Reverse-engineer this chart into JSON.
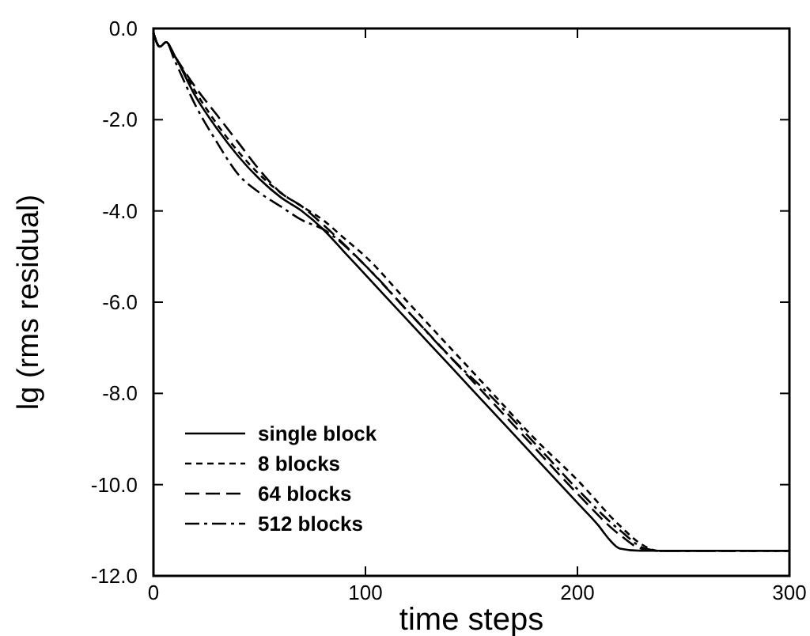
{
  "chart_data": {
    "type": "line",
    "xlabel": "time steps",
    "ylabel": "lg (rms residual)",
    "xlim": [
      0,
      300
    ],
    "ylim": [
      -12,
      0
    ],
    "xticks": [
      0,
      100,
      200,
      300
    ],
    "yticks": [
      {
        "value": 0,
        "label": "0.0"
      },
      {
        "value": -2,
        "label": "-2.0"
      },
      {
        "value": -4,
        "label": "-4.0"
      },
      {
        "value": -6,
        "label": "-6.0"
      },
      {
        "value": -8,
        "label": "-8.0"
      },
      {
        "value": -10,
        "label": "-10.0"
      },
      {
        "value": -12,
        "label": "-12.0"
      }
    ],
    "grid": false,
    "legend": "bottom left",
    "series": [
      {
        "name": "single block",
        "color": "#000000",
        "line_style": "solid",
        "x": [
          0,
          3,
          6,
          10,
          20,
          30,
          40,
          50,
          60,
          70,
          80,
          90,
          100,
          120,
          140,
          160,
          180,
          200,
          210,
          215,
          220,
          230,
          300
        ],
        "values": [
          -0.1,
          -0.4,
          -0.3,
          -0.6,
          -1.5,
          -2.2,
          -2.8,
          -3.3,
          -3.7,
          -4.0,
          -4.4,
          -4.9,
          -5.4,
          -6.4,
          -7.4,
          -8.4,
          -9.4,
          -10.4,
          -10.9,
          -11.2,
          -11.4,
          -11.45,
          -11.45
        ]
      },
      {
        "name": "8 blocks",
        "color": "#000000",
        "line_style": "dotted",
        "x": [
          0,
          3,
          6,
          10,
          20,
          30,
          40,
          50,
          60,
          70,
          80,
          90,
          100,
          120,
          140,
          160,
          180,
          200,
          220,
          230,
          238,
          300
        ],
        "values": [
          -0.1,
          -0.4,
          -0.3,
          -0.6,
          -1.4,
          -2.1,
          -2.7,
          -3.2,
          -3.6,
          -3.9,
          -4.2,
          -4.6,
          -5.0,
          -6.0,
          -7.0,
          -8.0,
          -9.0,
          -9.9,
          -10.9,
          -11.3,
          -11.45,
          -11.45
        ]
      },
      {
        "name": "64 blocks",
        "color": "#000000",
        "line_style": "dashed",
        "x": [
          0,
          3,
          6,
          10,
          20,
          30,
          40,
          50,
          60,
          70,
          80,
          100,
          120,
          140,
          160,
          180,
          200,
          220,
          230,
          240,
          300
        ],
        "values": [
          -0.1,
          -0.4,
          -0.3,
          -0.6,
          -1.3,
          -1.9,
          -2.5,
          -3.1,
          -3.6,
          -3.9,
          -4.3,
          -5.2,
          -6.2,
          -7.2,
          -8.2,
          -9.2,
          -10.2,
          -11.1,
          -11.4,
          -11.45,
          -11.45
        ]
      },
      {
        "name": "512 blocks",
        "color": "#000000",
        "line_style": "dashdot",
        "x": [
          0,
          3,
          6,
          10,
          20,
          30,
          40,
          50,
          60,
          70,
          80,
          100,
          120,
          140,
          160,
          180,
          200,
          220,
          232,
          240,
          300
        ],
        "values": [
          -0.1,
          -0.4,
          -0.3,
          -0.7,
          -1.7,
          -2.5,
          -3.2,
          -3.6,
          -3.9,
          -4.2,
          -4.4,
          -5.2,
          -6.2,
          -7.2,
          -8.1,
          -9.1,
          -10.1,
          -11.0,
          -11.4,
          -11.45,
          -11.45
        ]
      }
    ]
  }
}
